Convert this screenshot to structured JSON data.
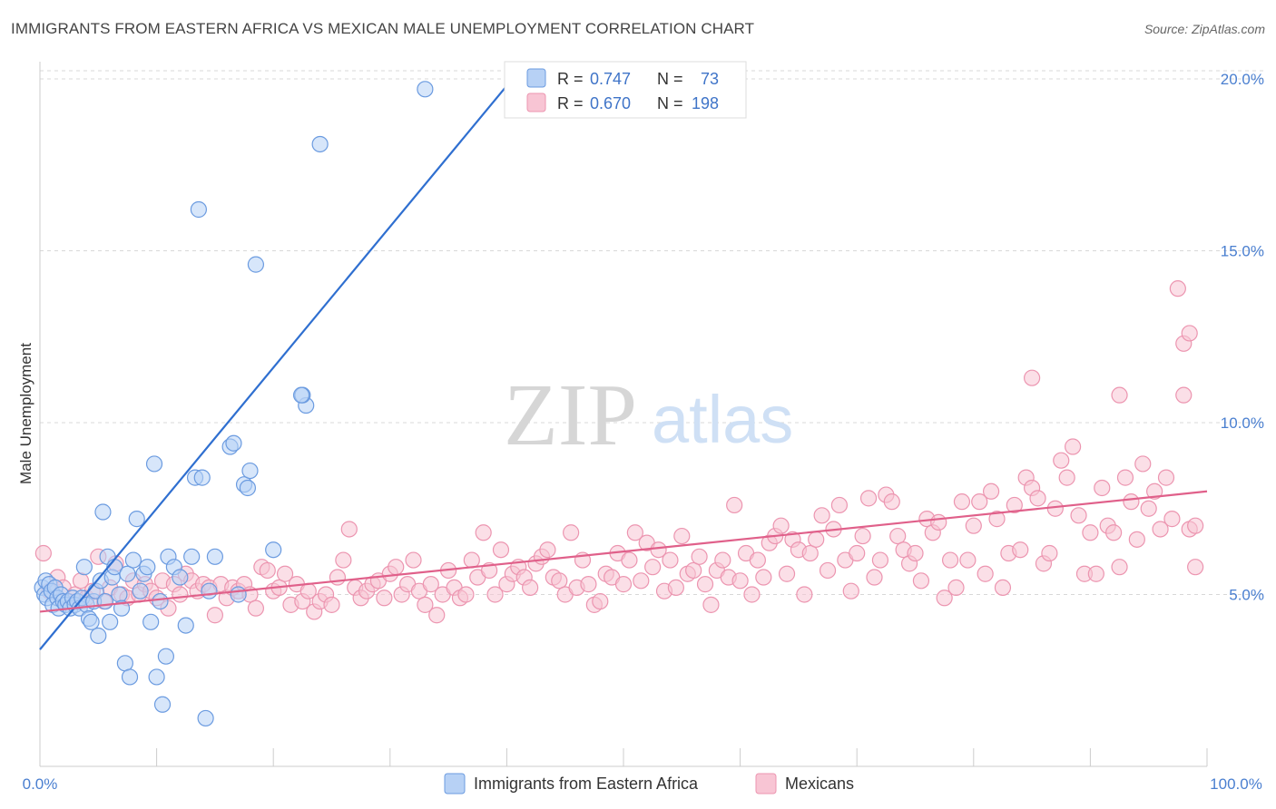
{
  "title": "IMMIGRANTS FROM EASTERN AFRICA VS MEXICAN MALE UNEMPLOYMENT CORRELATION CHART",
  "source": "Source: ZipAtlas.com",
  "watermark": {
    "zip": "ZIP",
    "atlas": "atlas"
  },
  "colors": {
    "blue_fill": "#b7d1f5",
    "blue_stroke": "#6b9be0",
    "blue_line": "#2f6fd0",
    "pink_fill": "#f8c5d4",
    "pink_stroke": "#ec95b0",
    "pink_line": "#e0608a",
    "axis_text": "#4a7fd0",
    "grid": "#d8d8d8"
  },
  "legend": {
    "blue": {
      "r_label": "R =",
      "r_value": "0.747",
      "n_label": "N =",
      "n_value": "73"
    },
    "pink": {
      "r_label": "R =",
      "r_value": "0.670",
      "n_label": "N =",
      "n_value": "198"
    }
  },
  "chart_data": {
    "type": "scatter",
    "title": "IMMIGRANTS FROM EASTERN AFRICA VS MEXICAN MALE UNEMPLOYMENT CORRELATION CHART",
    "xlabel": "",
    "ylabel": "Male Unemployment",
    "xlim": [
      0,
      100
    ],
    "ylim": [
      0,
      20.5
    ],
    "x_tick_labels": [
      "0.0%",
      "100.0%"
    ],
    "y_ticks": [
      5,
      10,
      15,
      20
    ],
    "y_tick_labels": [
      "5.0%",
      "10.0%",
      "15.0%",
      "20.0%"
    ],
    "grid": true,
    "legend_position": "top-center",
    "series": [
      {
        "name": "Immigrants from Eastern Africa",
        "color": "#6b9be0",
        "trendline": {
          "x": [
            0,
            40
          ],
          "y": [
            3.4,
            19.8
          ]
        },
        "points": [
          [
            0.2,
            5.2
          ],
          [
            0.4,
            5.0
          ],
          [
            0.5,
            5.4
          ],
          [
            0.6,
            4.9
          ],
          [
            0.8,
            5.3
          ],
          [
            1.0,
            5.1
          ],
          [
            1.1,
            4.7
          ],
          [
            1.3,
            5.2
          ],
          [
            1.5,
            4.9
          ],
          [
            1.6,
            4.6
          ],
          [
            1.8,
            5.0
          ],
          [
            2.0,
            4.8
          ],
          [
            2.2,
            4.7
          ],
          [
            2.4,
            4.8
          ],
          [
            2.6,
            4.6
          ],
          [
            2.8,
            4.9
          ],
          [
            3.0,
            4.7
          ],
          [
            3.2,
            4.8
          ],
          [
            3.4,
            4.6
          ],
          [
            3.6,
            4.9
          ],
          [
            3.8,
            5.8
          ],
          [
            4.0,
            4.7
          ],
          [
            4.2,
            4.3
          ],
          [
            4.4,
            4.2
          ],
          [
            4.6,
            4.8
          ],
          [
            4.8,
            5.1
          ],
          [
            5.0,
            3.8
          ],
          [
            5.2,
            5.4
          ],
          [
            5.4,
            7.4
          ],
          [
            5.6,
            4.8
          ],
          [
            5.8,
            6.1
          ],
          [
            6.0,
            4.2
          ],
          [
            6.2,
            5.5
          ],
          [
            6.4,
            5.8
          ],
          [
            6.8,
            5.0
          ],
          [
            7.0,
            4.6
          ],
          [
            7.3,
            3.0
          ],
          [
            7.5,
            5.6
          ],
          [
            7.7,
            2.6
          ],
          [
            8.0,
            6.0
          ],
          [
            8.3,
            7.2
          ],
          [
            8.6,
            5.1
          ],
          [
            8.9,
            5.6
          ],
          [
            9.2,
            5.8
          ],
          [
            9.5,
            4.2
          ],
          [
            9.8,
            8.8
          ],
          [
            10.0,
            2.6
          ],
          [
            10.3,
            4.8
          ],
          [
            10.5,
            1.8
          ],
          [
            10.8,
            3.2
          ],
          [
            11.0,
            6.1
          ],
          [
            11.5,
            5.8
          ],
          [
            12.0,
            5.5
          ],
          [
            12.5,
            4.1
          ],
          [
            13.0,
            6.1
          ],
          [
            13.3,
            8.4
          ],
          [
            13.6,
            16.2
          ],
          [
            13.9,
            8.4
          ],
          [
            14.2,
            1.4
          ],
          [
            14.5,
            5.1
          ],
          [
            15.0,
            6.1
          ],
          [
            16.3,
            9.3
          ],
          [
            16.6,
            9.4
          ],
          [
            17.0,
            5.0
          ],
          [
            17.5,
            8.2
          ],
          [
            17.8,
            8.1
          ],
          [
            18.0,
            8.6
          ],
          [
            18.5,
            14.6
          ],
          [
            20.0,
            6.3
          ],
          [
            22.8,
            10.5
          ],
          [
            22.5,
            10.8
          ],
          [
            22.4,
            10.8
          ],
          [
            24.0,
            18.1
          ],
          [
            33.0,
            19.7
          ]
        ]
      },
      {
        "name": "Mexicans",
        "color": "#ec95b0",
        "trendline": {
          "x": [
            0,
            100
          ],
          "y": [
            4.5,
            8.0
          ]
        },
        "points": [
          [
            0.3,
            6.2
          ],
          [
            0.8,
            5.1
          ],
          [
            1.5,
            5.5
          ],
          [
            2.0,
            5.2
          ],
          [
            2.5,
            4.8
          ],
          [
            3.0,
            5.0
          ],
          [
            3.5,
            5.4
          ],
          [
            4.0,
            4.9
          ],
          [
            4.5,
            5.1
          ],
          [
            5.0,
            6.1
          ],
          [
            5.5,
            4.8
          ],
          [
            6.0,
            5.2
          ],
          [
            6.5,
            5.9
          ],
          [
            7.0,
            5.0
          ],
          [
            7.5,
            4.9
          ],
          [
            8.0,
            5.4
          ],
          [
            8.5,
            5.0
          ],
          [
            9.0,
            5.3
          ],
          [
            9.5,
            5.1
          ],
          [
            10.0,
            4.9
          ],
          [
            10.5,
            5.4
          ],
          [
            11.0,
            4.6
          ],
          [
            11.5,
            5.3
          ],
          [
            12.0,
            5.0
          ],
          [
            12.5,
            5.6
          ],
          [
            13.0,
            5.4
          ],
          [
            13.5,
            5.1
          ],
          [
            14.0,
            5.3
          ],
          [
            14.5,
            5.2
          ],
          [
            15.0,
            4.4
          ],
          [
            15.5,
            5.3
          ],
          [
            16.0,
            4.9
          ],
          [
            16.5,
            5.2
          ],
          [
            17.0,
            5.1
          ],
          [
            17.5,
            5.3
          ],
          [
            18.0,
            5.0
          ],
          [
            18.5,
            4.6
          ],
          [
            19.0,
            5.8
          ],
          [
            19.5,
            5.7
          ],
          [
            20.0,
            5.1
          ],
          [
            20.5,
            5.2
          ],
          [
            21.0,
            5.6
          ],
          [
            21.5,
            4.7
          ],
          [
            22.0,
            5.3
          ],
          [
            22.5,
            4.8
          ],
          [
            23.0,
            5.1
          ],
          [
            23.5,
            4.5
          ],
          [
            24.0,
            4.8
          ],
          [
            24.5,
            5.0
          ],
          [
            25.0,
            4.7
          ],
          [
            25.5,
            5.5
          ],
          [
            26.0,
            6.0
          ],
          [
            26.5,
            6.9
          ],
          [
            27.0,
            5.2
          ],
          [
            27.5,
            4.9
          ],
          [
            28.0,
            5.1
          ],
          [
            28.5,
            5.3
          ],
          [
            29.0,
            5.4
          ],
          [
            29.5,
            4.9
          ],
          [
            30.0,
            5.6
          ],
          [
            30.5,
            5.8
          ],
          [
            31.0,
            5.0
          ],
          [
            31.5,
            5.3
          ],
          [
            32.0,
            6.0
          ],
          [
            32.5,
            5.1
          ],
          [
            33.0,
            4.7
          ],
          [
            33.5,
            5.3
          ],
          [
            34.0,
            4.4
          ],
          [
            34.5,
            5.0
          ],
          [
            35.0,
            5.7
          ],
          [
            35.5,
            5.2
          ],
          [
            36.0,
            4.9
          ],
          [
            36.5,
            5.0
          ],
          [
            37.0,
            6.0
          ],
          [
            37.5,
            5.5
          ],
          [
            38.0,
            6.8
          ],
          [
            38.5,
            5.7
          ],
          [
            39.0,
            5.0
          ],
          [
            39.5,
            6.3
          ],
          [
            40.0,
            5.3
          ],
          [
            40.5,
            5.6
          ],
          [
            41.0,
            5.8
          ],
          [
            41.5,
            5.5
          ],
          [
            42.0,
            5.2
          ],
          [
            42.5,
            5.9
          ],
          [
            43.0,
            6.1
          ],
          [
            43.5,
            6.3
          ],
          [
            44.0,
            5.5
          ],
          [
            44.5,
            5.4
          ],
          [
            45.0,
            5.0
          ],
          [
            45.5,
            6.8
          ],
          [
            46.0,
            5.2
          ],
          [
            46.5,
            6.0
          ],
          [
            47.0,
            5.3
          ],
          [
            47.5,
            4.7
          ],
          [
            48.0,
            4.8
          ],
          [
            48.5,
            5.6
          ],
          [
            49.0,
            5.5
          ],
          [
            49.5,
            6.2
          ],
          [
            50.0,
            5.3
          ],
          [
            50.5,
            6.0
          ],
          [
            51.0,
            6.8
          ],
          [
            51.5,
            5.4
          ],
          [
            52.0,
            6.5
          ],
          [
            52.5,
            5.8
          ],
          [
            53.0,
            6.3
          ],
          [
            53.5,
            5.1
          ],
          [
            54.0,
            6.0
          ],
          [
            54.5,
            5.2
          ],
          [
            55.0,
            6.7
          ],
          [
            55.5,
            5.6
          ],
          [
            56.0,
            5.7
          ],
          [
            56.5,
            6.1
          ],
          [
            57.0,
            5.3
          ],
          [
            57.5,
            4.7
          ],
          [
            58.0,
            5.7
          ],
          [
            58.5,
            6.0
          ],
          [
            59.0,
            5.5
          ],
          [
            59.5,
            7.6
          ],
          [
            60.0,
            5.4
          ],
          [
            60.5,
            6.2
          ],
          [
            61.0,
            5.0
          ],
          [
            61.5,
            6.0
          ],
          [
            62.0,
            5.5
          ],
          [
            62.5,
            6.5
          ],
          [
            63.0,
            6.7
          ],
          [
            63.5,
            7.0
          ],
          [
            64.0,
            5.6
          ],
          [
            64.5,
            6.6
          ],
          [
            65.0,
            6.3
          ],
          [
            65.5,
            5.0
          ],
          [
            66.0,
            6.2
          ],
          [
            66.5,
            6.6
          ],
          [
            67.0,
            7.3
          ],
          [
            67.5,
            5.7
          ],
          [
            68.0,
            6.9
          ],
          [
            68.5,
            7.6
          ],
          [
            69.0,
            6.0
          ],
          [
            69.5,
            5.1
          ],
          [
            70.0,
            6.2
          ],
          [
            70.5,
            6.7
          ],
          [
            71.0,
            7.8
          ],
          [
            71.5,
            5.5
          ],
          [
            72.0,
            6.0
          ],
          [
            72.5,
            7.9
          ],
          [
            73.0,
            7.7
          ],
          [
            73.5,
            6.7
          ],
          [
            74.0,
            6.3
          ],
          [
            74.5,
            5.9
          ],
          [
            75.0,
            6.2
          ],
          [
            75.5,
            5.4
          ],
          [
            76.0,
            7.2
          ],
          [
            76.5,
            6.8
          ],
          [
            77.0,
            7.1
          ],
          [
            77.5,
            4.9
          ],
          [
            78.0,
            6.0
          ],
          [
            78.5,
            5.2
          ],
          [
            79.0,
            7.7
          ],
          [
            79.5,
            6.0
          ],
          [
            80.0,
            7.0
          ],
          [
            80.5,
            7.7
          ],
          [
            81.0,
            5.6
          ],
          [
            81.5,
            8.0
          ],
          [
            82.0,
            7.2
          ],
          [
            82.5,
            5.2
          ],
          [
            83.0,
            6.2
          ],
          [
            83.5,
            7.6
          ],
          [
            84.0,
            6.3
          ],
          [
            84.5,
            8.4
          ],
          [
            85.0,
            8.1
          ],
          [
            85.5,
            7.8
          ],
          [
            86.0,
            5.9
          ],
          [
            86.5,
            6.2
          ],
          [
            87.0,
            7.5
          ],
          [
            87.5,
            8.9
          ],
          [
            88.0,
            8.4
          ],
          [
            88.5,
            9.3
          ],
          [
            89.0,
            7.3
          ],
          [
            89.5,
            5.6
          ],
          [
            90.0,
            6.8
          ],
          [
            90.5,
            5.6
          ],
          [
            91.0,
            8.1
          ],
          [
            91.5,
            7.0
          ],
          [
            92.0,
            6.8
          ],
          [
            92.5,
            5.8
          ],
          [
            93.0,
            8.4
          ],
          [
            93.5,
            7.7
          ],
          [
            94.0,
            6.6
          ],
          [
            94.5,
            8.8
          ],
          [
            95.0,
            7.5
          ],
          [
            95.5,
            8.0
          ],
          [
            96.0,
            6.9
          ],
          [
            96.5,
            8.4
          ],
          [
            97.0,
            7.2
          ],
          [
            97.5,
            13.9
          ],
          [
            98.0,
            10.8
          ],
          [
            98.5,
            6.9
          ],
          [
            99.0,
            5.8
          ],
          [
            92.5,
            10.8
          ],
          [
            85.0,
            11.3
          ],
          [
            98.0,
            12.3
          ],
          [
            98.5,
            12.6
          ],
          [
            99.0,
            7.0
          ]
        ]
      }
    ]
  },
  "bottom_legend": [
    {
      "label": "Immigrants from Eastern Africa"
    },
    {
      "label": "Mexicans"
    }
  ]
}
